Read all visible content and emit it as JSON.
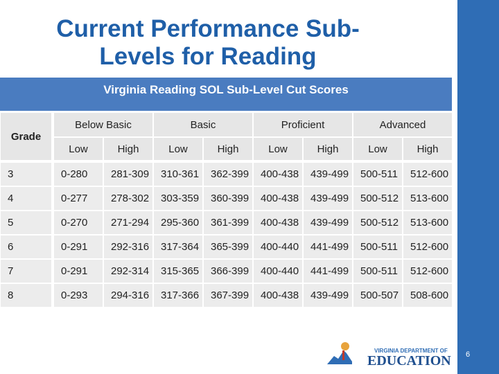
{
  "slide": {
    "title": "Current Performance Sub-Levels for Reading",
    "page_number": "6"
  },
  "table": {
    "caption": "Virginia Reading SOL Sub-Level Cut Scores",
    "grade_header": "Grade",
    "groups": [
      "Below Basic",
      "Basic",
      "Proficient",
      "Advanced"
    ],
    "subheaders": [
      "Low",
      "High",
      "Low",
      "High",
      "Low",
      "High",
      "Low",
      "High"
    ],
    "rows": [
      [
        "3",
        "0-280",
        "281-309",
        "310-361",
        "362-399",
        "400-438",
        "439-499",
        "500-511",
        "512-600"
      ],
      [
        "4",
        "0-277",
        "278-302",
        "303-359",
        "360-399",
        "400-438",
        "439-499",
        "500-512",
        "513-600"
      ],
      [
        "5",
        "0-270",
        "271-294",
        "295-360",
        "361-399",
        "400-438",
        "439-499",
        "500-512",
        "513-600"
      ],
      [
        "6",
        "0-291",
        "292-316",
        "317-364",
        "365-399",
        "400-440",
        "441-499",
        "500-511",
        "512-600"
      ],
      [
        "7",
        "0-291",
        "292-314",
        "315-365",
        "366-399",
        "400-440",
        "441-499",
        "500-511",
        "512-600"
      ],
      [
        "8",
        "0-293",
        "294-316",
        "317-366",
        "367-399",
        "400-438",
        "439-499",
        "500-507",
        "508-600"
      ]
    ]
  },
  "logo": {
    "line1": "VIRGINIA DEPARTMENT OF",
    "line2": "EDUCATION"
  }
}
